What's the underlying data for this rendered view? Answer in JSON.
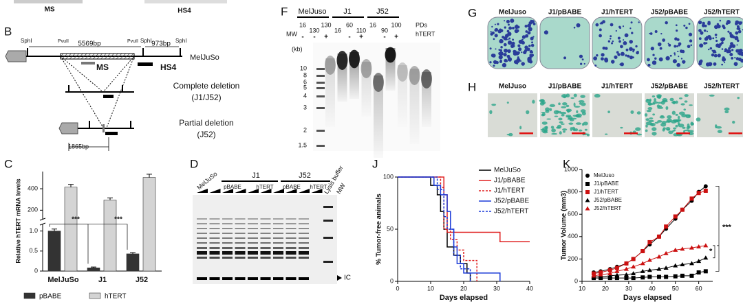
{
  "top": {
    "ms": "MS",
    "hs4": "HS4"
  },
  "panel_b": {
    "letter": "B",
    "sites": [
      "SphI",
      "PvuII",
      "PvuII",
      "SphI",
      "SphI"
    ],
    "sizes": [
      "5569bp",
      "973bp",
      "1865bp"
    ],
    "cell_line": "MelJuSo",
    "ms": "MS",
    "hs4": "HS4",
    "complete": [
      "Complete deletion",
      "(J1/J52)"
    ],
    "partial": [
      "Partial deletion",
      "(J52)"
    ]
  },
  "panel_d": {
    "letter": "D",
    "cell_line": "MelJuSo",
    "groups": [
      "J1",
      "J52"
    ],
    "lanes": [
      "pBABE",
      "hTERT",
      "pBABE",
      "hTERT"
    ],
    "lysis": "Lysis buffer",
    "mw": "MW",
    "ic": "IC"
  },
  "panel_f": {
    "letter": "F",
    "groups": [
      "MelJuso",
      "J1",
      "J52"
    ],
    "pds_label": "PDs",
    "treat_label": "hTERT",
    "mw": "MW",
    "unit": "(kb)",
    "lanes": [
      {
        "pd": "16",
        "treat": "-"
      },
      {
        "pd": "130",
        "treat": "-"
      },
      {
        "pd": "130",
        "treat": "+"
      },
      {
        "pd": "16"
      },
      {
        "pd": "60",
        "treat": "-"
      },
      {
        "pd": "110",
        "treat": "+"
      },
      {
        "pd": "16"
      },
      {
        "pd": "90",
        "treat": "-"
      },
      {
        "pd": "100",
        "treat": "+"
      }
    ],
    "ladder": [
      "10",
      "8",
      "6",
      "5",
      "4",
      "3",
      "2",
      "1.5"
    ]
  },
  "panel_g": {
    "letter": "G",
    "samples": [
      "MelJuso",
      "J1/pBABE",
      "J1/hTERT",
      "J52/pBABE",
      "J52/hTERT"
    ]
  },
  "panel_h": {
    "letter": "H",
    "samples": [
      "MelJuso",
      "J1/pBABE",
      "J1/hTERT",
      "J52/pBABE",
      "J52/hTERT"
    ]
  },
  "chart_data": [
    {
      "type": "bar",
      "letter": "C",
      "y_label": "Relative hTERT mRNA levels",
      "categories": [
        "MelJuSo",
        "J1",
        "J52"
      ],
      "series": [
        {
          "name": "pBABE",
          "color": "#333333",
          "values": [
            1.0,
            0.08,
            0.43
          ],
          "errors": [
            0.05,
            0.02,
            0.03
          ]
        },
        {
          "name": "hTERT",
          "color": "#d4d4d4",
          "values": [
            415,
            295,
            505
          ],
          "errors": [
            25,
            20,
            30
          ]
        }
      ],
      "ylim": [
        0,
        1.2
      ],
      "y_upper_lim": [
        100,
        560
      ],
      "yticks": [
        0,
        0.5,
        {
          "value": 1,
          "label": "1.0"
        },
        200,
        400
      ],
      "annotations": [
        "***",
        "***"
      ]
    },
    {
      "type": "step",
      "letter": "J",
      "y_label": "% Tumor-free animals",
      "x_label": "Days elapsed",
      "xlim": [
        0,
        40
      ],
      "xticks": [
        0,
        10,
        20,
        30,
        40
      ],
      "ylim": [
        0,
        100
      ],
      "yticks": [
        0,
        50,
        100
      ],
      "series": [
        {
          "name": "MelJuSo",
          "color": "#000000",
          "dashed": false,
          "x": [
            0,
            10,
            12,
            13,
            14,
            15,
            17,
            19,
            21,
            22
          ],
          "values": [
            100,
            92,
            83,
            67,
            50,
            33,
            25,
            17,
            8,
            0
          ]
        },
        {
          "name": "J1/pBABE",
          "color": "#e02020",
          "dashed": false,
          "x": [
            0,
            14,
            15,
            31,
            40
          ],
          "values": [
            100,
            83,
            47,
            38,
            38
          ]
        },
        {
          "name": "J1/hTERT",
          "color": "#e02020",
          "dashed": true,
          "x": [
            0,
            13,
            14,
            16,
            18,
            20,
            24
          ],
          "values": [
            100,
            90,
            50,
            40,
            30,
            20,
            0
          ]
        },
        {
          "name": "J52/pBABE",
          "color": "#1a3ad8",
          "dashed": false,
          "x": [
            0,
            11,
            13,
            15,
            16,
            17,
            18,
            20,
            31
          ],
          "values": [
            100,
            92,
            83,
            67,
            50,
            33,
            17,
            8,
            0
          ]
        },
        {
          "name": "J52/hTERT",
          "color": "#1a3ad8",
          "dashed": true,
          "x": [
            0,
            12,
            14,
            15,
            17,
            19,
            22
          ],
          "values": [
            100,
            88,
            62,
            50,
            25,
            12,
            0
          ]
        }
      ]
    },
    {
      "type": "line",
      "letter": "K",
      "y_label": "Tumor Volume (mm3)",
      "x_label": "Days elapsed",
      "xlim": [
        10,
        66
      ],
      "xticks": [
        10,
        20,
        30,
        40,
        50,
        60
      ],
      "ylim": [
        0,
        1000
      ],
      "yticks": [
        0,
        200,
        400,
        600,
        800,
        1000
      ],
      "x": [
        15,
        18,
        22,
        25,
        29,
        32,
        36,
        39,
        43,
        46,
        50,
        53,
        57,
        60,
        63
      ],
      "series": [
        {
          "name": "MelJuso",
          "color": "#000000",
          "marker": "circle",
          "values": [
            80,
            90,
            110,
            130,
            160,
            200,
            270,
            330,
            400,
            470,
            560,
            640,
            720,
            800,
            850
          ]
        },
        {
          "name": "J1/pBABE",
          "color": "#000000",
          "marker": "square",
          "values": [
            30,
            30,
            30,
            30,
            30,
            30,
            35,
            40,
            40,
            40,
            45,
            50,
            50,
            80,
            90
          ]
        },
        {
          "name": "J1/hTERT",
          "color": "#cc1111",
          "marker": "square",
          "values": [
            70,
            80,
            100,
            120,
            160,
            200,
            270,
            350,
            400,
            490,
            580,
            640,
            740,
            790,
            810
          ]
        },
        {
          "name": "J52/pBABE",
          "color": "#000000",
          "marker": "triangle",
          "values": [
            40,
            40,
            50,
            55,
            60,
            70,
            90,
            100,
            110,
            120,
            140,
            150,
            160,
            180,
            210
          ]
        },
        {
          "name": "J52/hTERT",
          "color": "#cc1111",
          "marker": "triangle",
          "values": [
            50,
            60,
            70,
            90,
            110,
            130,
            160,
            190,
            220,
            250,
            280,
            290,
            300,
            310,
            320
          ]
        }
      ],
      "annotations": [
        "***",
        "*"
      ]
    }
  ]
}
